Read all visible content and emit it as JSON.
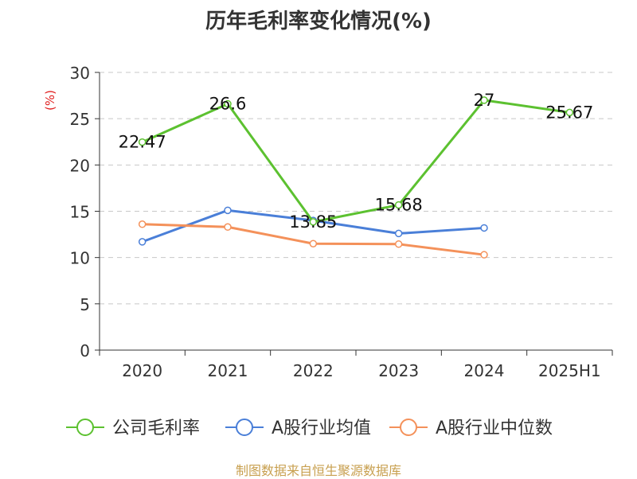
{
  "chart_data": {
    "type": "line",
    "title": "历年毛利率变化情况(%)",
    "ylabel": "(%)",
    "ylim": [
      0,
      30
    ],
    "yticks": [
      0,
      5,
      10,
      15,
      20,
      25,
      30
    ],
    "grid": true,
    "legend_position": "bottom",
    "categories": [
      "2020",
      "2021",
      "2022",
      "2023",
      "2024",
      "2025H1"
    ],
    "series": [
      {
        "name": "公司毛利率",
        "color": "#5cc130",
        "values": [
          22.47,
          26.6,
          13.85,
          15.68,
          27,
          25.67
        ],
        "labels": [
          "22.47",
          "26.6",
          "13.85",
          "15.68",
          "27",
          "25.67"
        ]
      },
      {
        "name": "A股行业均值",
        "color": "#4a7fd8",
        "values": [
          11.7,
          15.1,
          14.0,
          12.6,
          13.2,
          null
        ]
      },
      {
        "name": "A股行业中位数",
        "color": "#f4915a",
        "values": [
          13.6,
          13.3,
          11.5,
          11.45,
          10.3,
          null
        ]
      }
    ]
  },
  "source": "制图数据来自恒生聚源数据库"
}
